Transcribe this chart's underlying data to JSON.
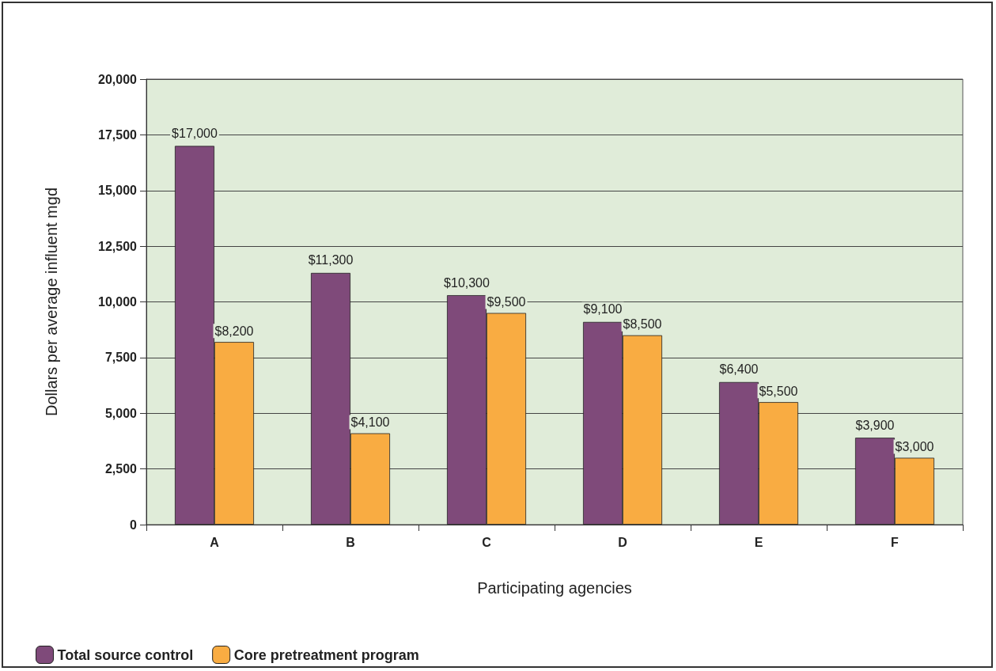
{
  "chart_data": {
    "type": "bar",
    "xlabel": "Participating agencies",
    "ylabel": "Dollars per average influent mgd",
    "categories": [
      "A",
      "B",
      "C",
      "D",
      "E",
      "F"
    ],
    "series": [
      {
        "name": "Total source control",
        "color": "#7f4a7a",
        "values": [
          17000,
          11300,
          10300,
          9100,
          6400,
          3900
        ],
        "value_labels": [
          "$17,000",
          "$11,300",
          "$10,300",
          "$9,100",
          "$6,400",
          "$3,900"
        ]
      },
      {
        "name": "Core pretreatment program",
        "color": "#f9ac42",
        "values": [
          8200,
          4100,
          9500,
          8500,
          5500,
          3000
        ],
        "value_labels": [
          "$8,200",
          "$4,100",
          "$9,500",
          "$8,500",
          "$5,500",
          "$3,000"
        ]
      }
    ],
    "ylim": [
      0,
      20000
    ],
    "yticks": [
      {
        "value": 0,
        "label": "0"
      },
      {
        "value": 2500,
        "label": "2,500"
      },
      {
        "value": 5000,
        "label": "5,000"
      },
      {
        "value": 7500,
        "label": "7,500"
      },
      {
        "value": 10000,
        "label": "10,000"
      },
      {
        "value": 12500,
        "label": "12,500"
      },
      {
        "value": 15000,
        "label": "15,000"
      },
      {
        "value": 17500,
        "label": "17,500"
      },
      {
        "value": 20000,
        "label": "20,000"
      }
    ],
    "grid": "y",
    "legend": "bottom left"
  }
}
